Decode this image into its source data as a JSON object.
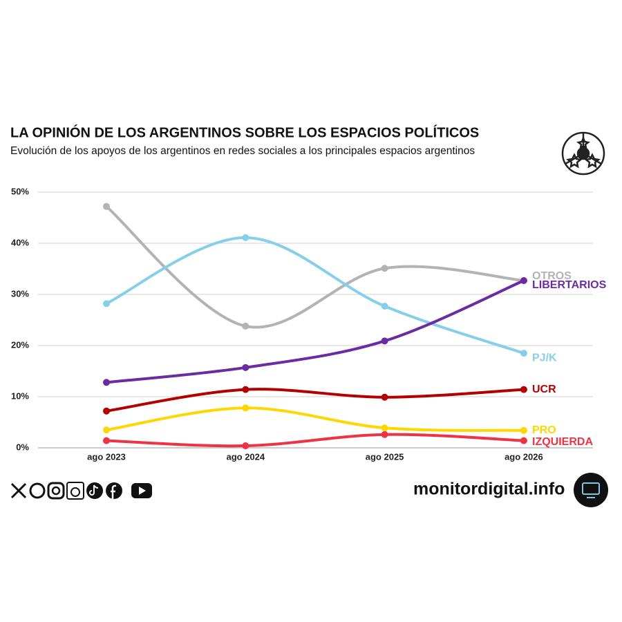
{
  "chart_data": {
    "type": "line",
    "title": "LA OPINIÓN DE LOS ARGENTINOS SOBRE LOS ESPACIOS POLÍTICOS",
    "subtitle": "Evolución de los apoyos de los argentinos en redes sociales a los principales espacios argentinos",
    "categories": [
      "ago 2023",
      "ago 2024",
      "ago 2025",
      "ago 2026"
    ],
    "series": [
      {
        "name": "OTROS",
        "color": "#b3b3b3",
        "values": [
          47.2,
          23.8,
          35.1,
          32.7
        ]
      },
      {
        "name": "PJ/K",
        "color": "#87ceeb",
        "values": [
          28.2,
          41.1,
          27.7,
          18.5
        ]
      },
      {
        "name": "LIBERTARIOS",
        "color": "#6a2ca0",
        "values": [
          12.8,
          15.7,
          20.9,
          32.7
        ]
      },
      {
        "name": "UCR",
        "color": "#b30000",
        "values": [
          7.2,
          11.4,
          9.9,
          11.4
        ]
      },
      {
        "name": "PRO",
        "color": "#ffd700",
        "values": [
          3.5,
          7.8,
          3.9,
          3.4
        ]
      },
      {
        "name": "IZQUIERDA",
        "color": "#ee3344",
        "values": [
          1.4,
          0.4,
          2.6,
          1.4
        ]
      }
    ],
    "ylim": [
      0,
      50
    ],
    "yticks": [
      {
        "value": 0,
        "label": "0%"
      },
      {
        "value": 10,
        "label": "10%"
      },
      {
        "value": 20,
        "label": "20%"
      },
      {
        "value": 30,
        "label": "30%"
      },
      {
        "value": 40,
        "label": "40%"
      },
      {
        "value": 50,
        "label": "50%"
      }
    ],
    "grid": true,
    "source": "monitordigital.info"
  }
}
